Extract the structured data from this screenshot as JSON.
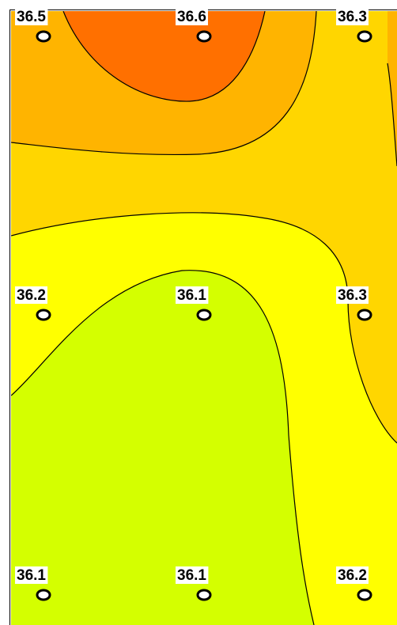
{
  "sensors": [
    [
      "36.5",
      "36.6",
      "36.3"
    ],
    [
      "36.2",
      "36.1",
      "36.3"
    ],
    [
      "36.1",
      "36.1",
      "36.2"
    ]
  ]
}
